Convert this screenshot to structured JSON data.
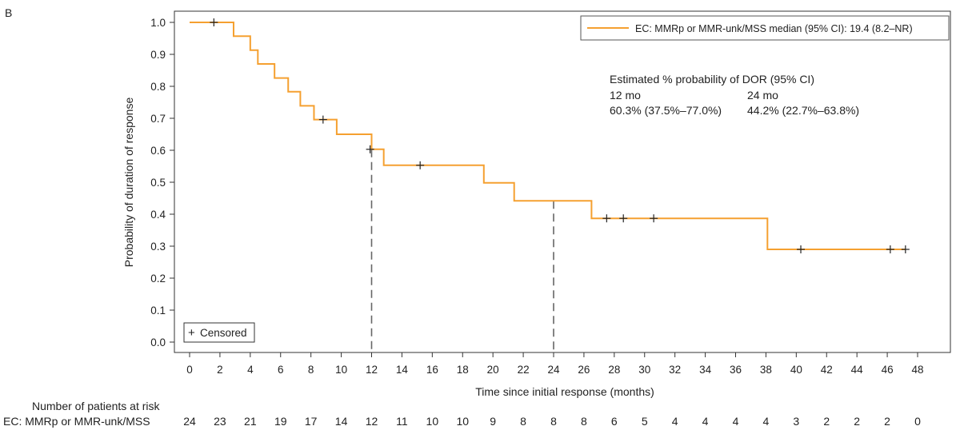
{
  "panel_label": "B",
  "chart_data": {
    "type": "line",
    "subtype": "kaplan-meier",
    "panel": "B",
    "xlabel": "Time since initial response (months)",
    "ylabel": "Probability of duration of response",
    "xlim": [
      0,
      48
    ],
    "ylim": [
      0,
      1.0
    ],
    "x_ticks": [
      "0",
      "2",
      "4",
      "6",
      "8",
      "10",
      "12",
      "14",
      "16",
      "18",
      "20",
      "22",
      "24",
      "26",
      "28",
      "30",
      "32",
      "34",
      "36",
      "38",
      "40",
      "42",
      "44",
      "46",
      "48"
    ],
    "y_ticks": [
      "0.0",
      "0.1",
      "0.2",
      "0.3",
      "0.4",
      "0.5",
      "0.6",
      "0.7",
      "0.8",
      "0.9",
      "1.0"
    ],
    "series": [
      {
        "name": "EC: MMRp or MMR-unk/MSS median (95% CI): 19.4 (8.2–NR)",
        "color": "#F5A030",
        "steps": [
          {
            "t": 0,
            "s": 1.0
          },
          {
            "t": 2.9,
            "s": 0.957
          },
          {
            "t": 4.0,
            "s": 0.913
          },
          {
            "t": 4.5,
            "s": 0.87
          },
          {
            "t": 5.6,
            "s": 0.826
          },
          {
            "t": 6.5,
            "s": 0.783
          },
          {
            "t": 7.3,
            "s": 0.739
          },
          {
            "t": 8.2,
            "s": 0.696
          },
          {
            "t": 9.7,
            "s": 0.65
          },
          {
            "t": 12.0,
            "s": 0.603
          },
          {
            "t": 12.8,
            "s": 0.553
          },
          {
            "t": 19.4,
            "s": 0.498
          },
          {
            "t": 21.4,
            "s": 0.442
          },
          {
            "t": 26.5,
            "s": 0.387
          },
          {
            "t": 38.1,
            "s": 0.29
          },
          {
            "t": 47.2,
            "s": 0.29
          }
        ],
        "censored": [
          {
            "t": 1.6,
            "s": 1.0
          },
          {
            "t": 8.8,
            "s": 0.696
          },
          {
            "t": 11.9,
            "s": 0.603
          },
          {
            "t": 15.2,
            "s": 0.553
          },
          {
            "t": 27.5,
            "s": 0.387
          },
          {
            "t": 28.6,
            "s": 0.387
          },
          {
            "t": 30.6,
            "s": 0.387
          },
          {
            "t": 40.3,
            "s": 0.29
          },
          {
            "t": 46.2,
            "s": 0.29
          },
          {
            "t": 47.2,
            "s": 0.29
          }
        ]
      }
    ],
    "reference_lines": [
      {
        "t": 12,
        "s": 0.603
      },
      {
        "t": 24,
        "s": 0.442
      }
    ],
    "legend": {
      "placement": "top-right",
      "series_label": "EC: MMRp or MMR-unk/MSS median (95% CI): 19.4 (8.2–NR)",
      "censored_label": "Censored",
      "censored_symbol": "+"
    },
    "annotation": {
      "title": "Estimated % probability of DOR (95% CI)",
      "col1_header": "12 mo",
      "col1_value": "60.3% (37.5%–77.0%)",
      "col2_header": "24 mo",
      "col2_value": "44.2% (22.7%–63.8%)"
    },
    "risk_table": {
      "title": "Number of patients at risk",
      "row_label": "EC: MMRp or MMR-unk/MSS",
      "values": [
        "24",
        "23",
        "21",
        "19",
        "17",
        "14",
        "12",
        "11",
        "10",
        "10",
        "9",
        "8",
        "8",
        "8",
        "6",
        "5",
        "4",
        "4",
        "4",
        "4",
        "3",
        "2",
        "2",
        "2",
        "0"
      ]
    }
  }
}
